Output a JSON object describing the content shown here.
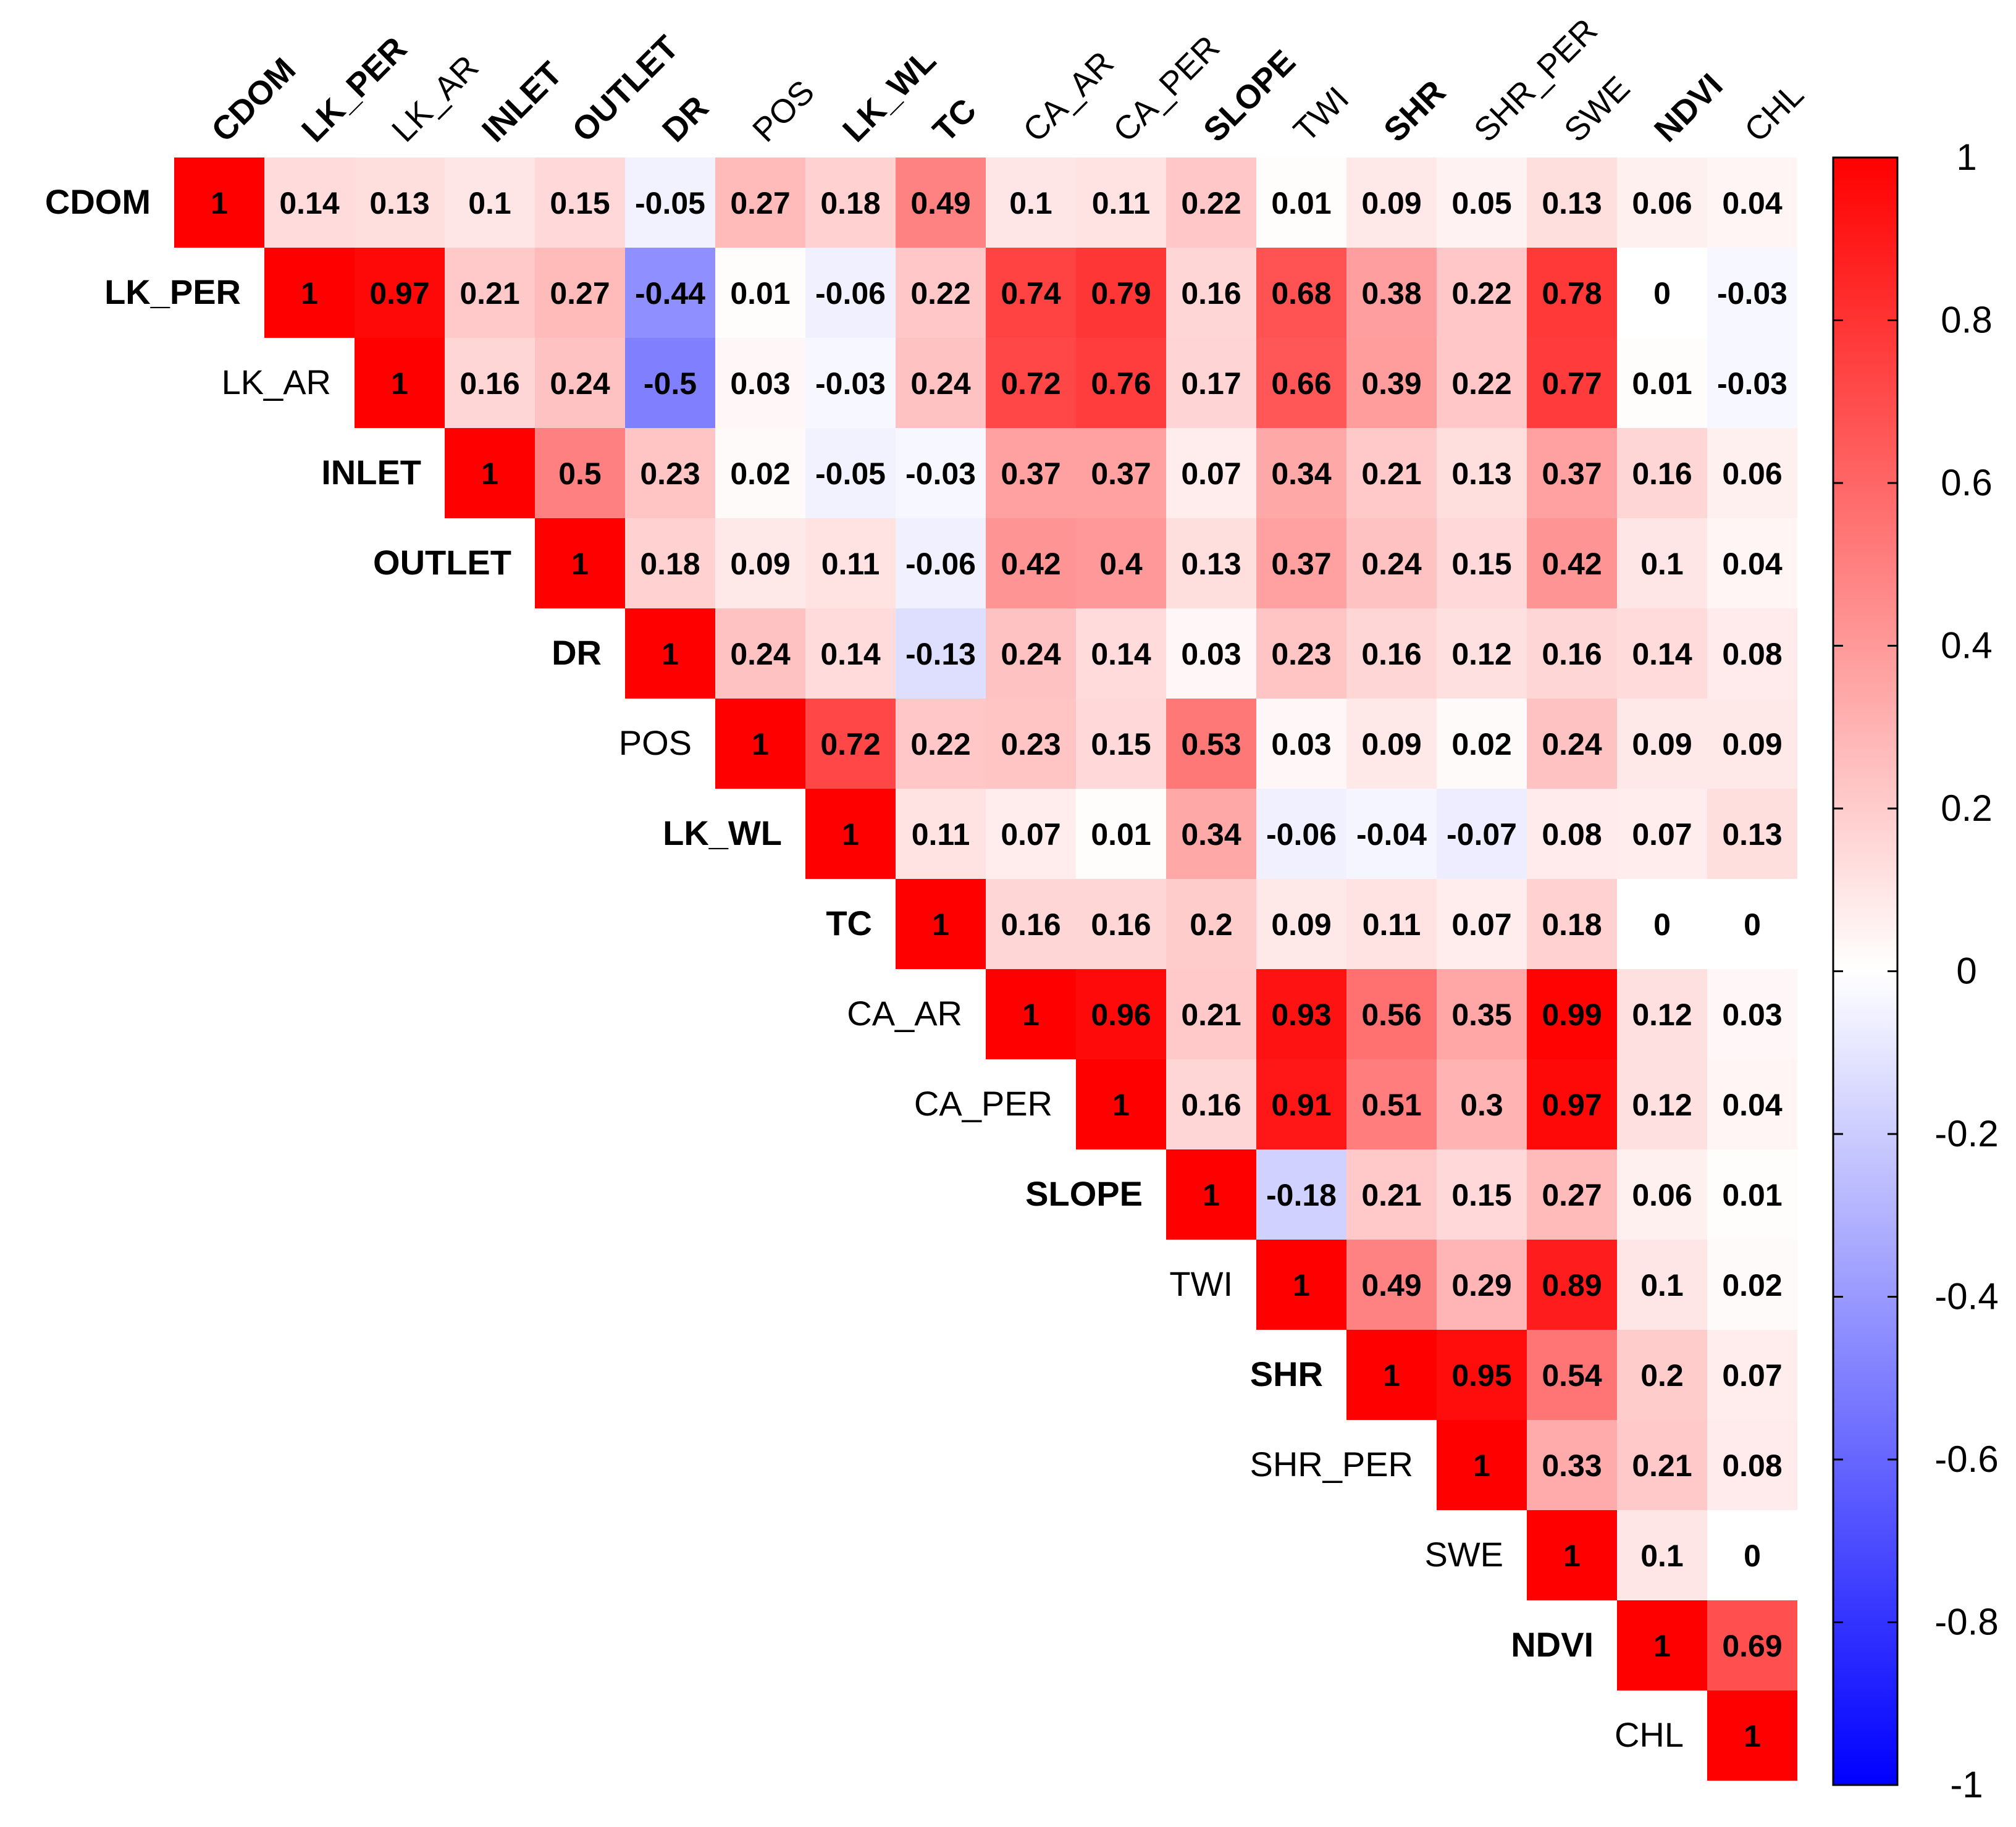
{
  "chart_data": {
    "type": "heatmap",
    "title": "",
    "variables": [
      "CDOM",
      "LK_PER",
      "LK_AR",
      "INLET",
      "OUTLET",
      "DR",
      "POS",
      "LK_WL",
      "TC",
      "CA_AR",
      "CA_PER",
      "SLOPE",
      "TWI",
      "SHR",
      "SHR_PER",
      "SWE",
      "NDVI",
      "CHL"
    ],
    "bold_variables": [
      "CDOM",
      "LK_PER",
      "INLET",
      "OUTLET",
      "DR",
      "LK_WL",
      "TC",
      "SLOPE",
      "SHR",
      "NDVI"
    ],
    "matrix_upper": [
      [
        1,
        0.14,
        0.13,
        0.1,
        0.15,
        -0.05,
        0.27,
        0.18,
        0.49,
        0.1,
        0.11,
        0.22,
        0.01,
        0.09,
        0.05,
        0.13,
        0.06,
        0.04
      ],
      [
        1,
        0.97,
        0.21,
        0.27,
        -0.44,
        0.01,
        -0.06,
        0.22,
        0.74,
        0.79,
        0.16,
        0.68,
        0.38,
        0.22,
        0.78,
        0,
        -0.03
      ],
      [
        1,
        0.16,
        0.24,
        -0.5,
        0.03,
        -0.03,
        0.24,
        0.72,
        0.76,
        0.17,
        0.66,
        0.39,
        0.22,
        0.77,
        0.01,
        -0.03
      ],
      [
        1,
        0.5,
        0.23,
        0.02,
        -0.05,
        -0.03,
        0.37,
        0.37,
        0.07,
        0.34,
        0.21,
        0.13,
        0.37,
        0.16,
        0.06
      ],
      [
        1,
        0.18,
        0.09,
        0.11,
        -0.06,
        0.42,
        0.4,
        0.13,
        0.37,
        0.24,
        0.15,
        0.42,
        0.1,
        0.04
      ],
      [
        1,
        0.24,
        0.14,
        -0.13,
        0.24,
        0.14,
        0.03,
        0.23,
        0.16,
        0.12,
        0.16,
        0.14,
        0.08
      ],
      [
        1,
        0.72,
        0.22,
        0.23,
        0.15,
        0.53,
        0.03,
        0.09,
        0.02,
        0.24,
        0.09,
        0.09
      ],
      [
        1,
        0.11,
        0.07,
        0.01,
        0.34,
        -0.06,
        -0.04,
        -0.07,
        0.08,
        0.07,
        0.13
      ],
      [
        1,
        0.16,
        0.16,
        0.2,
        0.09,
        0.11,
        0.07,
        0.18,
        0,
        0
      ],
      [
        1,
        0.96,
        0.21,
        0.93,
        0.56,
        0.35,
        0.99,
        0.12,
        0.03
      ],
      [
        1,
        0.16,
        0.91,
        0.51,
        0.3,
        0.97,
        0.12,
        0.04
      ],
      [
        1,
        -0.18,
        0.21,
        0.15,
        0.27,
        0.06,
        0.01
      ],
      [
        1,
        0.49,
        0.29,
        0.89,
        0.1,
        0.02
      ],
      [
        1,
        0.95,
        0.54,
        0.2,
        0.07
      ],
      [
        1,
        0.33,
        0.21,
        0.08
      ],
      [
        1,
        0.1,
        0
      ],
      [
        1,
        0.69
      ],
      [
        1
      ]
    ],
    "colorbar": {
      "range": [
        -1,
        1
      ],
      "ticks": [
        "1",
        "0.8",
        "0.6",
        "0.4",
        "0.2",
        "0",
        "-0.2",
        "-0.4",
        "-0.6",
        "-0.8",
        "-1"
      ],
      "colors": {
        "negative": "#0000ff",
        "zero": "#ffffff",
        "positive": "#ff0000"
      }
    }
  }
}
